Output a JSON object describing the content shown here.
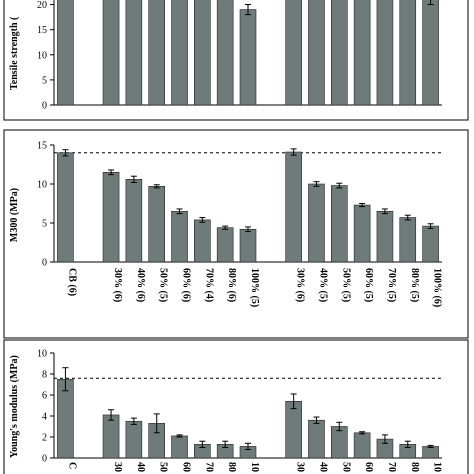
{
  "chart_data": [
    {
      "type": "bar",
      "ylabel": "Tensile strength (",
      "ylim": [
        0,
        22.5
      ],
      "yticks": [
        0,
        5,
        10,
        15,
        20
      ],
      "categories": [
        "CB (6)",
        "30% (6)",
        "40% (6)",
        "50% (5)",
        "60% (6)",
        "70% (4)",
        "80% (6)",
        "100% (5)",
        "30% (6)",
        "40% (5)",
        "50% (5)",
        "60% (5)",
        "70% (5)",
        "80% (5)",
        "100% (6)"
      ],
      "values": [
        24,
        24,
        24,
        24,
        24,
        24,
        22,
        19,
        24,
        24,
        24,
        24,
        24,
        24,
        21
      ],
      "errors": [
        0,
        0,
        0,
        0,
        0,
        0,
        1,
        1,
        0,
        0,
        0,
        0,
        0,
        0,
        1
      ],
      "reference_line": null,
      "show_category_labels": false
    },
    {
      "type": "bar",
      "ylabel": "M300 (MPa)",
      "ylim": [
        0,
        15
      ],
      "yticks": [
        0,
        5,
        10,
        15
      ],
      "categories": [
        "CB (6)",
        "30% (6)",
        "40% (6)",
        "50% (5)",
        "60% (6)",
        "70% (4)",
        "80% (6)",
        "100% (5)",
        "30% (6)",
        "40% (5)",
        "50% (5)",
        "60% (5)",
        "70% (5)",
        "80% (5)",
        "100% (6)"
      ],
      "values": [
        14.0,
        11.5,
        10.6,
        9.7,
        6.5,
        5.4,
        4.4,
        4.2,
        14.1,
        10.0,
        9.8,
        7.3,
        6.5,
        5.7,
        4.6
      ],
      "errors": [
        0.4,
        0.3,
        0.4,
        0.2,
        0.3,
        0.3,
        0.2,
        0.3,
        0.4,
        0.3,
        0.3,
        0.2,
        0.3,
        0.3,
        0.3
      ],
      "reference_line": 14.0,
      "show_category_labels": true
    },
    {
      "type": "bar",
      "ylabel": "Young's modulus (MPa)",
      "ylim": [
        0,
        10
      ],
      "yticks": [
        0,
        2,
        4,
        6,
        8,
        10
      ],
      "categories": [
        "C",
        "30",
        "40",
        "50",
        "60",
        "70",
        "80",
        "10",
        "30",
        "40",
        "50",
        "60",
        "70",
        "80",
        "10"
      ],
      "values": [
        7.5,
        4.1,
        3.5,
        3.3,
        2.1,
        1.3,
        1.3,
        1.1,
        5.4,
        3.6,
        3.0,
        2.4,
        1.8,
        1.3,
        1.1
      ],
      "errors": [
        1.1,
        0.5,
        0.3,
        0.9,
        0.1,
        0.3,
        0.3,
        0.3,
        0.7,
        0.3,
        0.4,
        0.1,
        0.4,
        0.3,
        0.1
      ],
      "reference_line": 7.6,
      "show_category_labels": true
    }
  ]
}
